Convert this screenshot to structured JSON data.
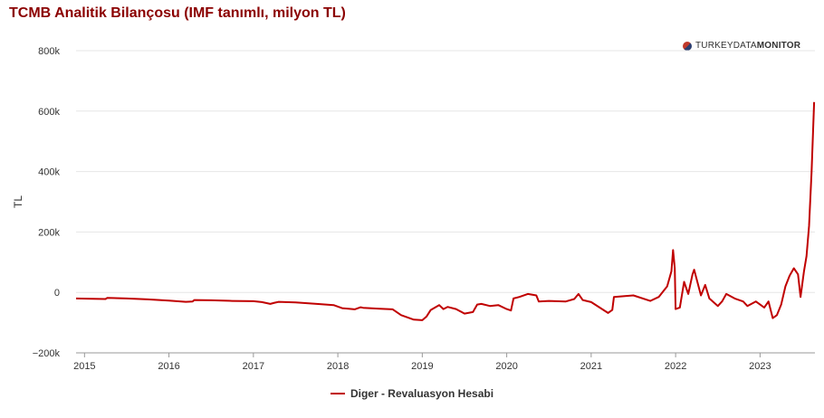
{
  "title": "TCMB Analitik Bilançosu (IMF tanımlı, milyon TL)",
  "logo": {
    "text_light": "TURKEY",
    "text_mid": "DATA",
    "text_bold": "MONITOR"
  },
  "colors": {
    "title": "#8b0000",
    "series": "#c00000",
    "grid": "#e6e6e6"
  },
  "chart_data": {
    "type": "line",
    "title": "TCMB Analitik Bilançosu (IMF tanımlı, milyon TL)",
    "ylabel": "TL",
    "xlabel": "",
    "ylim": [
      -200000,
      800000
    ],
    "xlim": [
      2014.9,
      2023.65
    ],
    "y_ticks": [
      {
        "value": 800000,
        "label": "800k"
      },
      {
        "value": 600000,
        "label": "600k"
      },
      {
        "value": 400000,
        "label": "400k"
      },
      {
        "value": 200000,
        "label": "200k"
      },
      {
        "value": 0,
        "label": "0"
      },
      {
        "value": -200000,
        "label": "−200k"
      }
    ],
    "x_ticks": [
      {
        "value": 2015,
        "label": "2015"
      },
      {
        "value": 2016,
        "label": "2016"
      },
      {
        "value": 2017,
        "label": "2017"
      },
      {
        "value": 2018,
        "label": "2018"
      },
      {
        "value": 2019,
        "label": "2019"
      },
      {
        "value": 2020,
        "label": "2020"
      },
      {
        "value": 2021,
        "label": "2021"
      },
      {
        "value": 2022,
        "label": "2022"
      },
      {
        "value": 2023,
        "label": "2023"
      }
    ],
    "grid": true,
    "legend_position": "bottom",
    "series": [
      {
        "name": "Diger - Revaluasyon Hesabi",
        "color": "#c00000",
        "points": [
          [
            2014.9,
            -20000
          ],
          [
            2015.1,
            -21000
          ],
          [
            2015.25,
            -22000
          ],
          [
            2015.27,
            -18000
          ],
          [
            2015.5,
            -20000
          ],
          [
            2015.75,
            -23000
          ],
          [
            2016.0,
            -27000
          ],
          [
            2016.2,
            -31000
          ],
          [
            2016.28,
            -30000
          ],
          [
            2016.3,
            -25000
          ],
          [
            2016.5,
            -26000
          ],
          [
            2016.75,
            -28000
          ],
          [
            2017.0,
            -29000
          ],
          [
            2017.1,
            -32000
          ],
          [
            2017.2,
            -38000
          ],
          [
            2017.25,
            -34000
          ],
          [
            2017.3,
            -31000
          ],
          [
            2017.5,
            -33000
          ],
          [
            2017.75,
            -38000
          ],
          [
            2017.95,
            -42000
          ],
          [
            2018.05,
            -52000
          ],
          [
            2018.2,
            -56000
          ],
          [
            2018.27,
            -49000
          ],
          [
            2018.3,
            -51000
          ],
          [
            2018.5,
            -54000
          ],
          [
            2018.65,
            -56000
          ],
          [
            2018.75,
            -75000
          ],
          [
            2018.9,
            -90000
          ],
          [
            2019.0,
            -92000
          ],
          [
            2019.05,
            -80000
          ],
          [
            2019.1,
            -58000
          ],
          [
            2019.2,
            -42000
          ],
          [
            2019.25,
            -55000
          ],
          [
            2019.3,
            -48000
          ],
          [
            2019.4,
            -55000
          ],
          [
            2019.5,
            -70000
          ],
          [
            2019.6,
            -65000
          ],
          [
            2019.65,
            -40000
          ],
          [
            2019.7,
            -38000
          ],
          [
            2019.8,
            -45000
          ],
          [
            2019.9,
            -42000
          ],
          [
            2020.0,
            -55000
          ],
          [
            2020.05,
            -60000
          ],
          [
            2020.08,
            -20000
          ],
          [
            2020.15,
            -15000
          ],
          [
            2020.25,
            -5000
          ],
          [
            2020.35,
            -10000
          ],
          [
            2020.38,
            -30000
          ],
          [
            2020.5,
            -28000
          ],
          [
            2020.7,
            -30000
          ],
          [
            2020.8,
            -22000
          ],
          [
            2020.85,
            -5000
          ],
          [
            2020.9,
            -25000
          ],
          [
            2021.0,
            -32000
          ],
          [
            2021.1,
            -50000
          ],
          [
            2021.2,
            -68000
          ],
          [
            2021.25,
            -58000
          ],
          [
            2021.27,
            -15000
          ],
          [
            2021.4,
            -12000
          ],
          [
            2021.5,
            -10000
          ],
          [
            2021.7,
            -28000
          ],
          [
            2021.8,
            -15000
          ],
          [
            2021.9,
            20000
          ],
          [
            2021.95,
            70000
          ],
          [
            2021.97,
            140000
          ],
          [
            2021.99,
            80000
          ],
          [
            2022.0,
            -55000
          ],
          [
            2022.05,
            -50000
          ],
          [
            2022.1,
            35000
          ],
          [
            2022.15,
            -5000
          ],
          [
            2022.2,
            60000
          ],
          [
            2022.22,
            75000
          ],
          [
            2022.3,
            -10000
          ],
          [
            2022.35,
            25000
          ],
          [
            2022.4,
            -20000
          ],
          [
            2022.5,
            -45000
          ],
          [
            2022.55,
            -30000
          ],
          [
            2022.6,
            -5000
          ],
          [
            2022.7,
            -20000
          ],
          [
            2022.8,
            -30000
          ],
          [
            2022.85,
            -45000
          ],
          [
            2022.95,
            -30000
          ],
          [
            2023.0,
            -40000
          ],
          [
            2023.05,
            -50000
          ],
          [
            2023.1,
            -30000
          ],
          [
            2023.15,
            -85000
          ],
          [
            2023.2,
            -75000
          ],
          [
            2023.25,
            -40000
          ],
          [
            2023.3,
            20000
          ],
          [
            2023.35,
            55000
          ],
          [
            2023.4,
            80000
          ],
          [
            2023.45,
            60000
          ],
          [
            2023.48,
            -15000
          ],
          [
            2023.52,
            70000
          ],
          [
            2023.55,
            120000
          ],
          [
            2023.58,
            220000
          ],
          [
            2023.61,
            400000
          ],
          [
            2023.64,
            630000
          ]
        ]
      }
    ]
  }
}
